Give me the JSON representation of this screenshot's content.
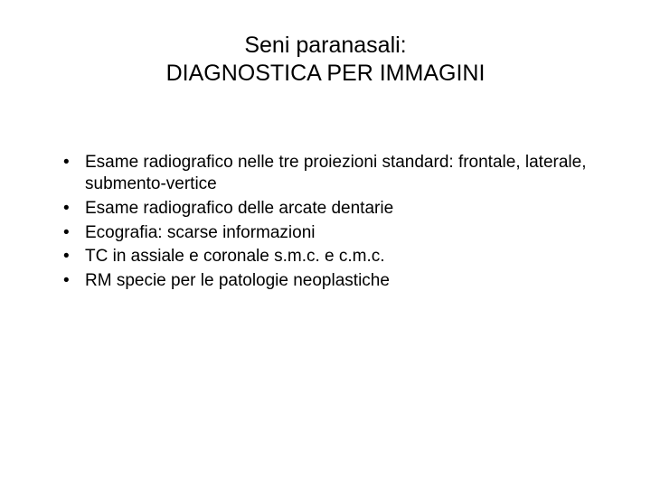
{
  "title": {
    "line1": "Seni paranasali:",
    "line2": "DIAGNOSTICA PER IMMAGINI"
  },
  "bullets": {
    "item0": "Esame radiografico nelle tre proiezioni standard: frontale, laterale, submento-vertice",
    "item1": "Esame radiografico delle arcate dentarie",
    "item2": "Ecografia: scarse informazioni",
    "item3": "TC in assiale e coronale s.m.c. e c.m.c.",
    "item4": "RM specie per le patologie neoplastiche"
  },
  "styling": {
    "background_color": "#ffffff",
    "text_color": "#000000",
    "title_fontsize": 25,
    "body_fontsize": 19,
    "font_family": "Arial"
  }
}
